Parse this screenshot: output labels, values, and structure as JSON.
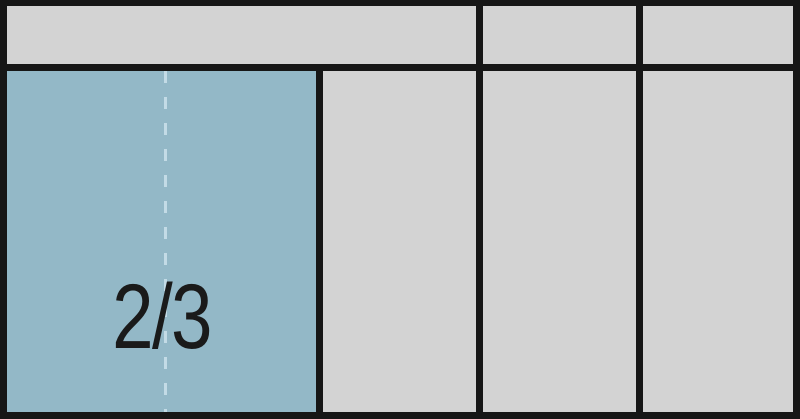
{
  "colors": {
    "border": "#161616",
    "compartment": "#d3d3d3",
    "highlight": "#93b8c7"
  },
  "highlighted_compartment": {
    "label": "2/3"
  }
}
